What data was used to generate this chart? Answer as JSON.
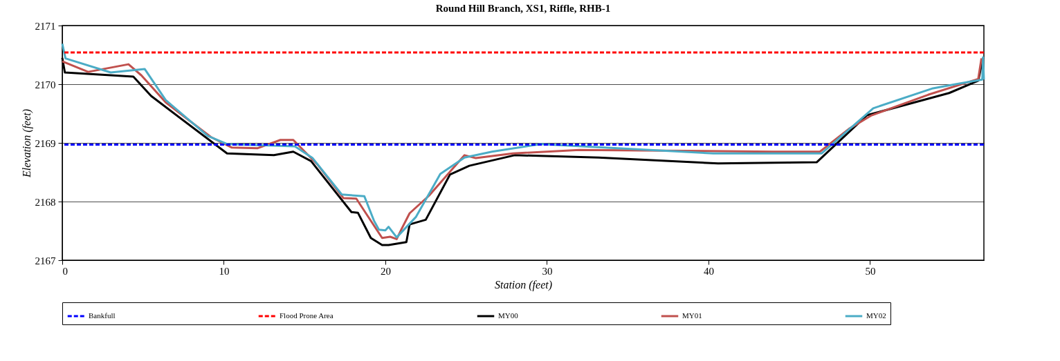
{
  "chart_data": {
    "type": "line",
    "title": "Round Hill Branch, XS1, Riffle, RHB-1",
    "xlabel": "Station (feet)",
    "ylabel": "Elevation (feet)",
    "xlim": [
      0,
      57.05
    ],
    "xticks": [
      0,
      10,
      20,
      30,
      40,
      50
    ],
    "ylim": [
      2167,
      2171
    ],
    "yticks": [
      2167,
      2168,
      2169,
      2170,
      2171
    ],
    "grid": "y",
    "legend": "bottom",
    "line_style": "solid",
    "marker": "none",
    "ref_lines": [
      {
        "axis": "y",
        "value": 2168.97,
        "label": "Bankfull",
        "color": "#0000ff",
        "line_style": "dashed"
      },
      {
        "axis": "y",
        "value": 2170.54,
        "label": "Flood Prone Area",
        "color": "#ff0000",
        "line_style": "dashed"
      }
    ],
    "series": [
      {
        "name": "MY00",
        "color": "#000000",
        "x": [
          0,
          0.16,
          4.4,
          5.5,
          10.2,
          13.1,
          14.3,
          15.4,
          17.9,
          18.3,
          19.1,
          19.8,
          20.2,
          21.3,
          21.5,
          22.5,
          24.0,
          25.2,
          28.0,
          33.2,
          40.6,
          46.7,
          49.8,
          54.9,
          56.7,
          57.0
        ],
        "values": [
          2170.45,
          2170.2,
          2170.13,
          2169.8,
          2168.82,
          2168.79,
          2168.85,
          2168.69,
          2167.82,
          2167.81,
          2167.38,
          2167.26,
          2167.26,
          2167.31,
          2167.61,
          2167.69,
          2168.46,
          2168.61,
          2168.79,
          2168.75,
          2168.65,
          2168.67,
          2169.47,
          2169.85,
          2170.06,
          2170.45
        ]
      },
      {
        "name": "MY01",
        "color": "#c0504d",
        "x": [
          0,
          1.6,
          4.1,
          4.9,
          6.4,
          9.2,
          10.5,
          12.1,
          13.5,
          14.3,
          15.8,
          17.4,
          18.2,
          19.8,
          20.3,
          20.7,
          21.0,
          21.5,
          22.7,
          24.9,
          25.6,
          27.9,
          32.0,
          44.0,
          46.9,
          48.7,
          50.1,
          53.6,
          56.7,
          56.9
        ],
        "values": [
          2170.39,
          2170.21,
          2170.34,
          2170.15,
          2169.69,
          2169.1,
          2168.92,
          2168.91,
          2169.05,
          2169.05,
          2168.63,
          2168.06,
          2168.05,
          2167.38,
          2167.4,
          2167.36,
          2167.53,
          2167.8,
          2168.1,
          2168.79,
          2168.74,
          2168.82,
          2168.88,
          2168.85,
          2168.85,
          2169.24,
          2169.47,
          2169.82,
          2170.09,
          2170.44
        ]
      },
      {
        "name": "MY02",
        "color": "#4bacc6",
        "x": [
          0,
          0.2,
          3.0,
          5.1,
          6.4,
          9.0,
          10.2,
          14.4,
          15.5,
          17.3,
          18.7,
          19.3,
          19.6,
          20.0,
          20.2,
          20.7,
          21.9,
          23.4,
          24.9,
          26.6,
          29.6,
          40.3,
          47.0,
          50.2,
          53.9,
          55.3,
          56.95,
          57.0,
          57.05
        ],
        "values": [
          2170.69,
          2170.44,
          2170.2,
          2170.26,
          2169.73,
          2169.12,
          2168.98,
          2168.94,
          2168.74,
          2168.12,
          2168.09,
          2167.67,
          2167.52,
          2167.51,
          2167.57,
          2167.39,
          2167.74,
          2168.47,
          2168.75,
          2168.85,
          2168.98,
          2168.82,
          2168.82,
          2169.59,
          2169.93,
          2170.0,
          2170.08,
          2170.46,
          2170.08
        ]
      }
    ]
  }
}
